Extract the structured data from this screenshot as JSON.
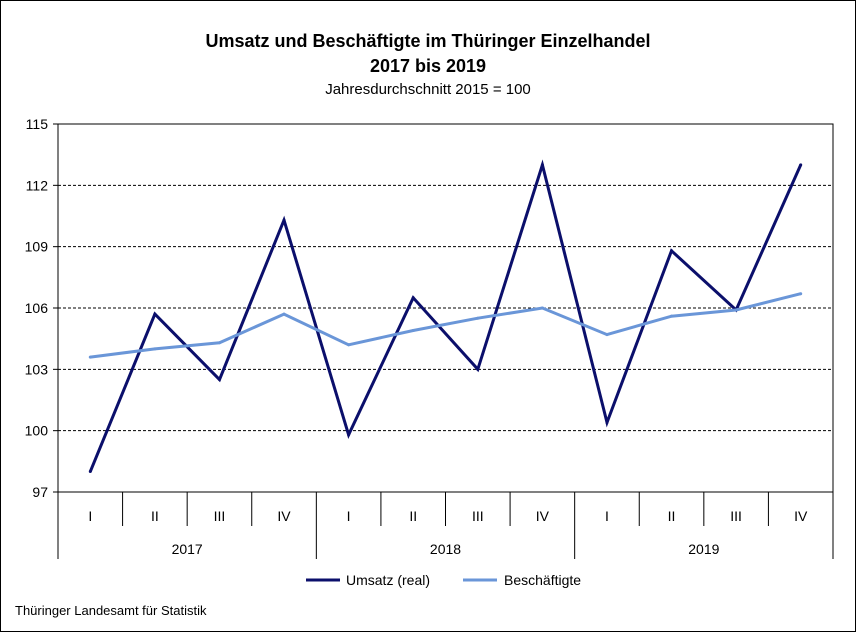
{
  "chart_data": {
    "type": "line",
    "title": "Umsatz und Beschäftigte im Thüringer Einzelhandel",
    "title_line2": "2017 bis 2019",
    "subtitle": "Jahresdurchschnitt 2015 = 100",
    "quarters": [
      "I",
      "II",
      "III",
      "IV",
      "I",
      "II",
      "III",
      "IV",
      "I",
      "II",
      "III",
      "IV"
    ],
    "years": [
      "2017",
      "2018",
      "2019"
    ],
    "ylim": [
      97,
      115
    ],
    "yticks": [
      97,
      100,
      103,
      106,
      109,
      112,
      115
    ],
    "grid": "horizontal dashed",
    "legend_position": "bottom",
    "series": [
      {
        "name": "Umsatz (real)",
        "color": "#0b0f6b",
        "values": [
          98.0,
          105.7,
          102.5,
          110.3,
          99.8,
          106.5,
          103.0,
          113.0,
          100.4,
          108.8,
          105.9,
          113.0
        ]
      },
      {
        "name": "Beschäftigte",
        "color": "#6a96d8",
        "values": [
          103.6,
          104.0,
          104.3,
          105.7,
          104.2,
          104.9,
          105.5,
          106.0,
          104.7,
          105.6,
          105.9,
          106.7
        ]
      }
    ]
  },
  "source": "Thüringer Landesamt für  Statistik"
}
